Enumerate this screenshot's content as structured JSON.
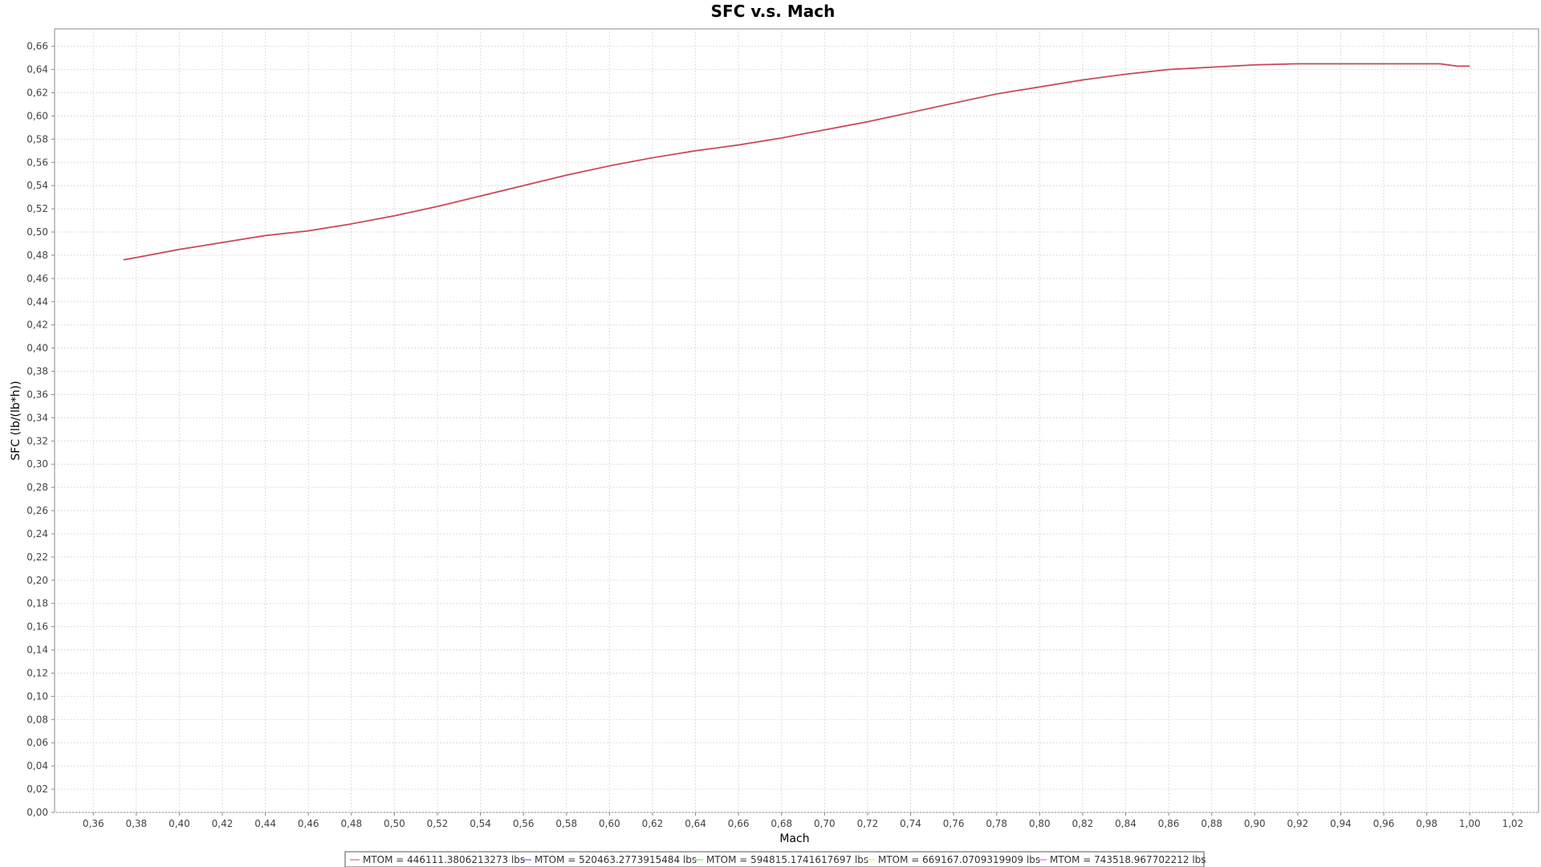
{
  "chart_data": {
    "type": "line",
    "title": "SFC v.s. Mach",
    "xlabel": "Mach",
    "ylabel": "SFC (lb/(lb*h))",
    "xlim": [
      0.342,
      1.032
    ],
    "ylim": [
      0.0,
      0.675
    ],
    "x_ticks": [
      "0,36",
      "0,38",
      "0,40",
      "0,42",
      "0,44",
      "0,46",
      "0,48",
      "0,50",
      "0,52",
      "0,54",
      "0,56",
      "0,58",
      "0,60",
      "0,62",
      "0,64",
      "0,66",
      "0,68",
      "0,70",
      "0,72",
      "0,74",
      "0,76",
      "0,78",
      "0,80",
      "0,82",
      "0,84",
      "0,86",
      "0,88",
      "0,90",
      "0,92",
      "0,94",
      "0,96",
      "0,98",
      "1,00",
      "1,02"
    ],
    "y_ticks": [
      "0,00",
      "0,02",
      "0,04",
      "0,06",
      "0,08",
      "0,10",
      "0,12",
      "0,14",
      "0,16",
      "0,18",
      "0,20",
      "0,22",
      "0,24",
      "0,26",
      "0,28",
      "0,30",
      "0,32",
      "0,34",
      "0,36",
      "0,38",
      "0,40",
      "0,42",
      "0,44",
      "0,46",
      "0,48",
      "0,50",
      "0,52",
      "0,54",
      "0,56",
      "0,58",
      "0,60",
      "0,62",
      "0,64",
      "0,66"
    ],
    "grid": true,
    "legend_position": "bottom",
    "x": [
      0.374,
      0.38,
      0.4,
      0.42,
      0.44,
      0.46,
      0.48,
      0.5,
      0.52,
      0.54,
      0.56,
      0.58,
      0.6,
      0.62,
      0.64,
      0.66,
      0.68,
      0.7,
      0.72,
      0.74,
      0.76,
      0.78,
      0.8,
      0.82,
      0.84,
      0.86,
      0.88,
      0.9,
      0.92,
      0.94,
      0.96,
      0.98,
      0.986,
      0.994,
      1.0
    ],
    "series": [
      {
        "name": "MTOM = 446111.3806213273 lbs",
        "color": "#f08080",
        "values": [
          0.476,
          0.478,
          0.485,
          0.491,
          0.497,
          0.501,
          0.507,
          0.514,
          0.522,
          0.531,
          0.54,
          0.549,
          0.557,
          0.564,
          0.57,
          0.575,
          0.581,
          0.588,
          0.595,
          0.603,
          0.611,
          0.619,
          0.625,
          0.631,
          0.636,
          0.64,
          0.642,
          0.644,
          0.645,
          0.645,
          0.645,
          0.645,
          0.645,
          0.643,
          0.643
        ]
      },
      {
        "name": "MTOM = 520463.2773915484 lbs",
        "color": "#8080ff",
        "values": [
          0.476,
          0.478,
          0.485,
          0.491,
          0.497,
          0.501,
          0.507,
          0.514,
          0.522,
          0.531,
          0.54,
          0.549,
          0.557,
          0.564,
          0.57,
          0.575,
          0.581,
          0.588,
          0.595,
          0.603,
          0.611,
          0.619,
          0.625,
          0.631,
          0.636,
          0.64,
          0.642,
          0.644,
          0.645,
          0.645,
          0.645,
          0.645,
          0.645,
          0.643,
          0.643
        ]
      },
      {
        "name": "MTOM = 594815.1741617697 lbs",
        "color": "#80f080",
        "values": [
          0.476,
          0.478,
          0.485,
          0.491,
          0.497,
          0.501,
          0.507,
          0.514,
          0.522,
          0.531,
          0.54,
          0.549,
          0.557,
          0.564,
          0.57,
          0.575,
          0.581,
          0.588,
          0.595,
          0.603,
          0.611,
          0.619,
          0.625,
          0.631,
          0.636,
          0.64,
          0.642,
          0.644,
          0.645,
          0.645,
          0.645,
          0.645,
          0.645,
          0.643,
          0.643
        ]
      },
      {
        "name": "MTOM = 669167.0709319909 lbs",
        "color": "#f0f080",
        "values": [
          0.476,
          0.478,
          0.485,
          0.491,
          0.497,
          0.501,
          0.507,
          0.514,
          0.522,
          0.531,
          0.54,
          0.549,
          0.557,
          0.564,
          0.57,
          0.575,
          0.581,
          0.588,
          0.595,
          0.603,
          0.611,
          0.619,
          0.625,
          0.631,
          0.636,
          0.64,
          0.642,
          0.644,
          0.645,
          0.645,
          0.645,
          0.645,
          0.645,
          0.643,
          0.643
        ]
      },
      {
        "name": "MTOM = 743518.967702212 lbs",
        "color": "#f080f0",
        "values": [
          0.476,
          0.478,
          0.485,
          0.491,
          0.497,
          0.501,
          0.507,
          0.514,
          0.522,
          0.531,
          0.54,
          0.549,
          0.557,
          0.564,
          0.57,
          0.575,
          0.581,
          0.588,
          0.595,
          0.603,
          0.611,
          0.619,
          0.625,
          0.631,
          0.636,
          0.64,
          0.642,
          0.644,
          0.645,
          0.645,
          0.645,
          0.645,
          0.645,
          0.643,
          0.643
        ]
      }
    ],
    "visible_color": "#d04060"
  }
}
